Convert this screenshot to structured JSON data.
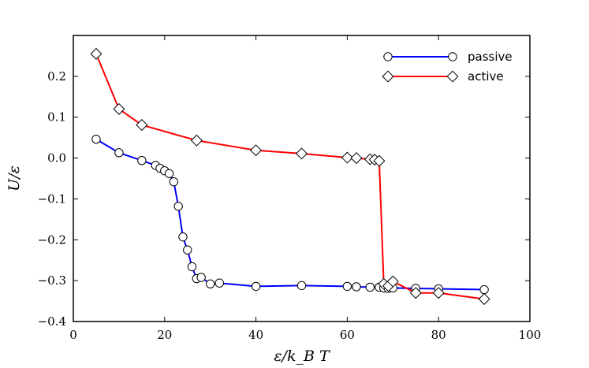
{
  "chart_data": {
    "type": "line",
    "xlabel": "ε/k_B T",
    "ylabel": "U/ε",
    "xlim": [
      0,
      100
    ],
    "ylim": [
      -0.4,
      0.3
    ],
    "x_ticks": [
      0,
      20,
      40,
      60,
      80,
      100
    ],
    "y_ticks": [
      -0.4,
      -0.3,
      -0.2,
      -0.1,
      0.0,
      0.1,
      0.2
    ],
    "x_tick_labels": [
      "0",
      "20",
      "40",
      "60",
      "80",
      "100"
    ],
    "y_tick_labels": [
      "−0.4",
      "−0.3",
      "−0.2",
      "−0.1",
      "0.0",
      "0.1",
      "0.2"
    ],
    "grid": false,
    "legend_position": "top-right",
    "series": [
      {
        "name": "passive",
        "color": "#0000ff",
        "marker": "circle",
        "x": [
          5,
          10,
          15,
          18,
          19,
          20,
          21,
          22,
          23,
          24,
          25,
          26,
          27,
          28,
          30,
          32,
          40,
          50,
          60,
          62,
          65,
          67,
          68,
          69,
          70,
          75,
          80,
          90
        ],
        "y": [
          0.046,
          0.013,
          -0.006,
          -0.018,
          -0.025,
          -0.031,
          -0.038,
          -0.058,
          -0.118,
          -0.193,
          -0.225,
          -0.266,
          -0.295,
          -0.292,
          -0.308,
          -0.306,
          -0.314,
          -0.312,
          -0.314,
          -0.315,
          -0.316,
          -0.316,
          -0.318,
          -0.319,
          -0.318,
          -0.319,
          -0.32,
          -0.322
        ]
      },
      {
        "name": "active",
        "color": "#ff0000",
        "marker": "diamond",
        "x": [
          5,
          10,
          15,
          27,
          40,
          50,
          60,
          62,
          65,
          66,
          67,
          68,
          69,
          70,
          75,
          80,
          90
        ],
        "y": [
          0.255,
          0.12,
          0.081,
          0.043,
          0.019,
          0.011,
          0.001,
          0.0,
          -0.003,
          -0.004,
          -0.007,
          -0.308,
          -0.313,
          -0.302,
          -0.33,
          -0.33,
          -0.345
        ]
      }
    ]
  }
}
